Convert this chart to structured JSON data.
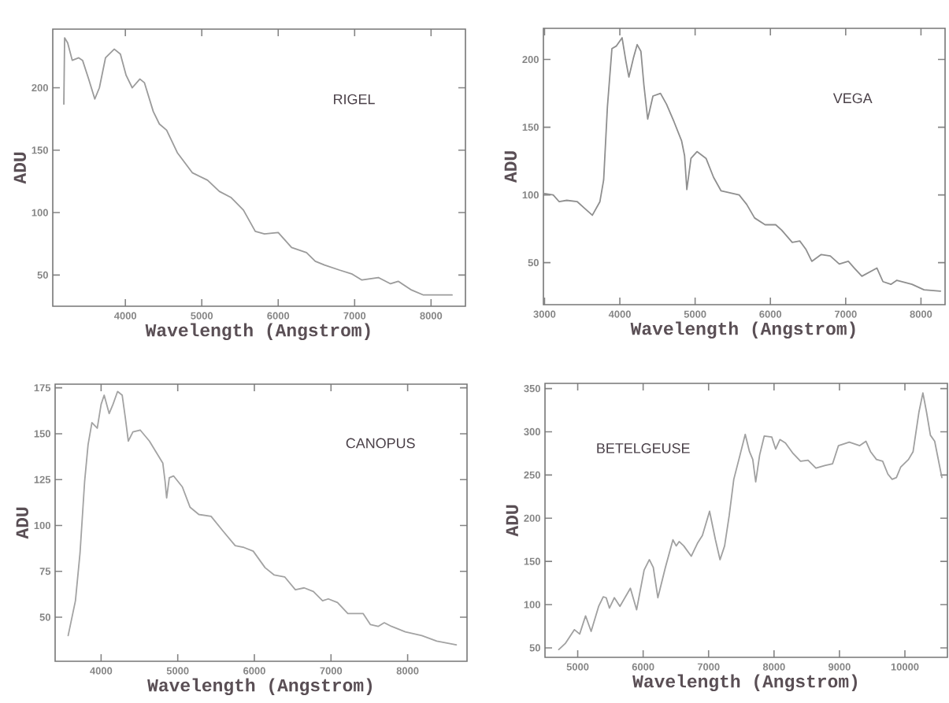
{
  "chart_data": [
    {
      "type": "line",
      "title": "RIGEL",
      "xlabel": "Wavelength (Angstrom)",
      "ylabel": "ADU",
      "color": "#9b9b9b",
      "xlim": [
        3050,
        8450
      ],
      "ylim": [
        25,
        247
      ],
      "xticks": [
        4000,
        5000,
        6000,
        7000,
        8000
      ],
      "yticks": [
        50,
        100,
        150,
        200
      ],
      "x": [
        3195,
        3205,
        3245,
        3305,
        3390,
        3440,
        3520,
        3600,
        3660,
        3740,
        3855,
        3935,
        4010,
        4090,
        4190,
        4250,
        4365,
        4445,
        4540,
        4680,
        4875,
        5075,
        5230,
        5385,
        5545,
        5700,
        5820,
        6000,
        6175,
        6370,
        6485,
        6605,
        6800,
        6960,
        7095,
        7310,
        7470,
        7570,
        7745,
        7900,
        8275
      ],
      "values": [
        187,
        240,
        236,
        222,
        224,
        222,
        207,
        191,
        200,
        224,
        231,
        227,
        210,
        200,
        207,
        204,
        181,
        171,
        166,
        148,
        132,
        126,
        117,
        112,
        102,
        85,
        83,
        84,
        72,
        68,
        61,
        58,
        54,
        51,
        46,
        48,
        43,
        45,
        38,
        34,
        34
      ]
    },
    {
      "type": "line",
      "title": "VEGA",
      "xlabel": "Wavelength (Angstrom)",
      "ylabel": "ADU",
      "color": "#8f8f8f",
      "xlim": [
        2985,
        8320
      ],
      "ylim": [
        19,
        223
      ],
      "xticks": [
        3000,
        4000,
        5000,
        6000,
        7000,
        8000
      ],
      "yticks": [
        50,
        100,
        150,
        200
      ],
      "x": [
        3000,
        3115,
        3195,
        3295,
        3435,
        3535,
        3635,
        3735,
        3785,
        3835,
        3895,
        3955,
        4030,
        4080,
        4120,
        4180,
        4230,
        4280,
        4320,
        4370,
        4440,
        4540,
        4620,
        4720,
        4820,
        4860,
        4890,
        4945,
        5025,
        5145,
        5245,
        5345,
        5585,
        5685,
        5790,
        5930,
        6070,
        6150,
        6290,
        6390,
        6470,
        6550,
        6675,
        6795,
        6915,
        7035,
        7115,
        7215,
        7415,
        7495,
        7600,
        7680,
        7880,
        8040,
        8260
      ],
      "values": [
        101,
        100,
        95,
        96,
        95,
        90,
        85,
        95,
        111,
        165,
        208,
        210,
        216,
        199,
        187,
        201,
        211,
        206,
        181,
        156,
        173,
        175,
        167,
        154,
        140,
        129,
        104,
        127,
        132,
        127,
        113,
        103,
        100,
        93,
        83,
        78,
        78,
        74,
        65,
        66,
        60,
        51,
        56,
        55,
        49,
        51,
        46,
        40,
        46,
        36,
        34,
        37,
        34,
        30,
        29
      ]
    },
    {
      "type": "line",
      "title": "CANOPUS",
      "xlabel": "Wavelength (Angstrom)",
      "ylabel": "ADU",
      "color": "#a3a3a3",
      "xlim": [
        3400,
        8775
      ],
      "ylim": [
        26,
        177
      ],
      "xticks": [
        4000,
        5000,
        6000,
        7000,
        8000
      ],
      "yticks": [
        50,
        75,
        100,
        125,
        150,
        175
      ],
      "x": [
        3570,
        3665,
        3725,
        3785,
        3830,
        3880,
        3950,
        4000,
        4040,
        4105,
        4155,
        4215,
        4275,
        4315,
        4355,
        4415,
        4510,
        4630,
        4805,
        4835,
        4855,
        4890,
        4945,
        5060,
        5160,
        5275,
        5435,
        5590,
        5750,
        5865,
        5985,
        6140,
        6260,
        6395,
        6535,
        6650,
        6770,
        6890,
        6965,
        7085,
        7220,
        7420,
        7515,
        7615,
        7695,
        7790,
        7970,
        8185,
        8380,
        8635
      ],
      "values": [
        40,
        59,
        85,
        124,
        144,
        156,
        153,
        166,
        171,
        161,
        166,
        173,
        171,
        159,
        146,
        151,
        152,
        146,
        134,
        124,
        115,
        126,
        127,
        121,
        110,
        106,
        105,
        97,
        89,
        88,
        86,
        77,
        73,
        72,
        65,
        66,
        64,
        59,
        60,
        58,
        52,
        52,
        46,
        45,
        47,
        45,
        42,
        40,
        37,
        35
      ]
    },
    {
      "type": "line",
      "title": "BETELGEUSE",
      "xlabel": "Wavelength (Angstrom)",
      "ylabel": "ADU",
      "color": "#a0a0a0",
      "xlim": [
        4500,
        10650
      ],
      "ylim": [
        39,
        356
      ],
      "xticks": [
        5000,
        6000,
        7000,
        8000,
        9000,
        10000
      ],
      "yticks": [
        50,
        100,
        150,
        200,
        250,
        300,
        350
      ],
      "x": [
        4710,
        4810,
        4950,
        5030,
        5120,
        5205,
        5320,
        5390,
        5435,
        5485,
        5560,
        5645,
        5805,
        5900,
        6015,
        6095,
        6155,
        6225,
        6340,
        6455,
        6505,
        6550,
        6620,
        6735,
        6830,
        6905,
        7015,
        7105,
        7175,
        7245,
        7315,
        7385,
        7480,
        7560,
        7625,
        7675,
        7720,
        7780,
        7850,
        7965,
        8025,
        8090,
        8175,
        8290,
        8405,
        8520,
        8640,
        8775,
        8895,
        8985,
        9150,
        9310,
        9405,
        9475,
        9565,
        9660,
        9740,
        9805,
        9870,
        9935,
        10055,
        10125,
        10215,
        10275,
        10330,
        10390,
        10455,
        10565
      ],
      "values": [
        48,
        55,
        71,
        66,
        87,
        69,
        98,
        109,
        108,
        96,
        108,
        98,
        119,
        94,
        140,
        152,
        143,
        108,
        143,
        175,
        168,
        173,
        168,
        156,
        171,
        180,
        208,
        175,
        152,
        168,
        203,
        245,
        273,
        297,
        277,
        268,
        242,
        273,
        295,
        294,
        280,
        291,
        287,
        275,
        266,
        267,
        258,
        261,
        263,
        284,
        288,
        284,
        289,
        277,
        268,
        266,
        251,
        245,
        247,
        259,
        268,
        277,
        323,
        345,
        323,
        296,
        289,
        247
      ]
    }
  ]
}
